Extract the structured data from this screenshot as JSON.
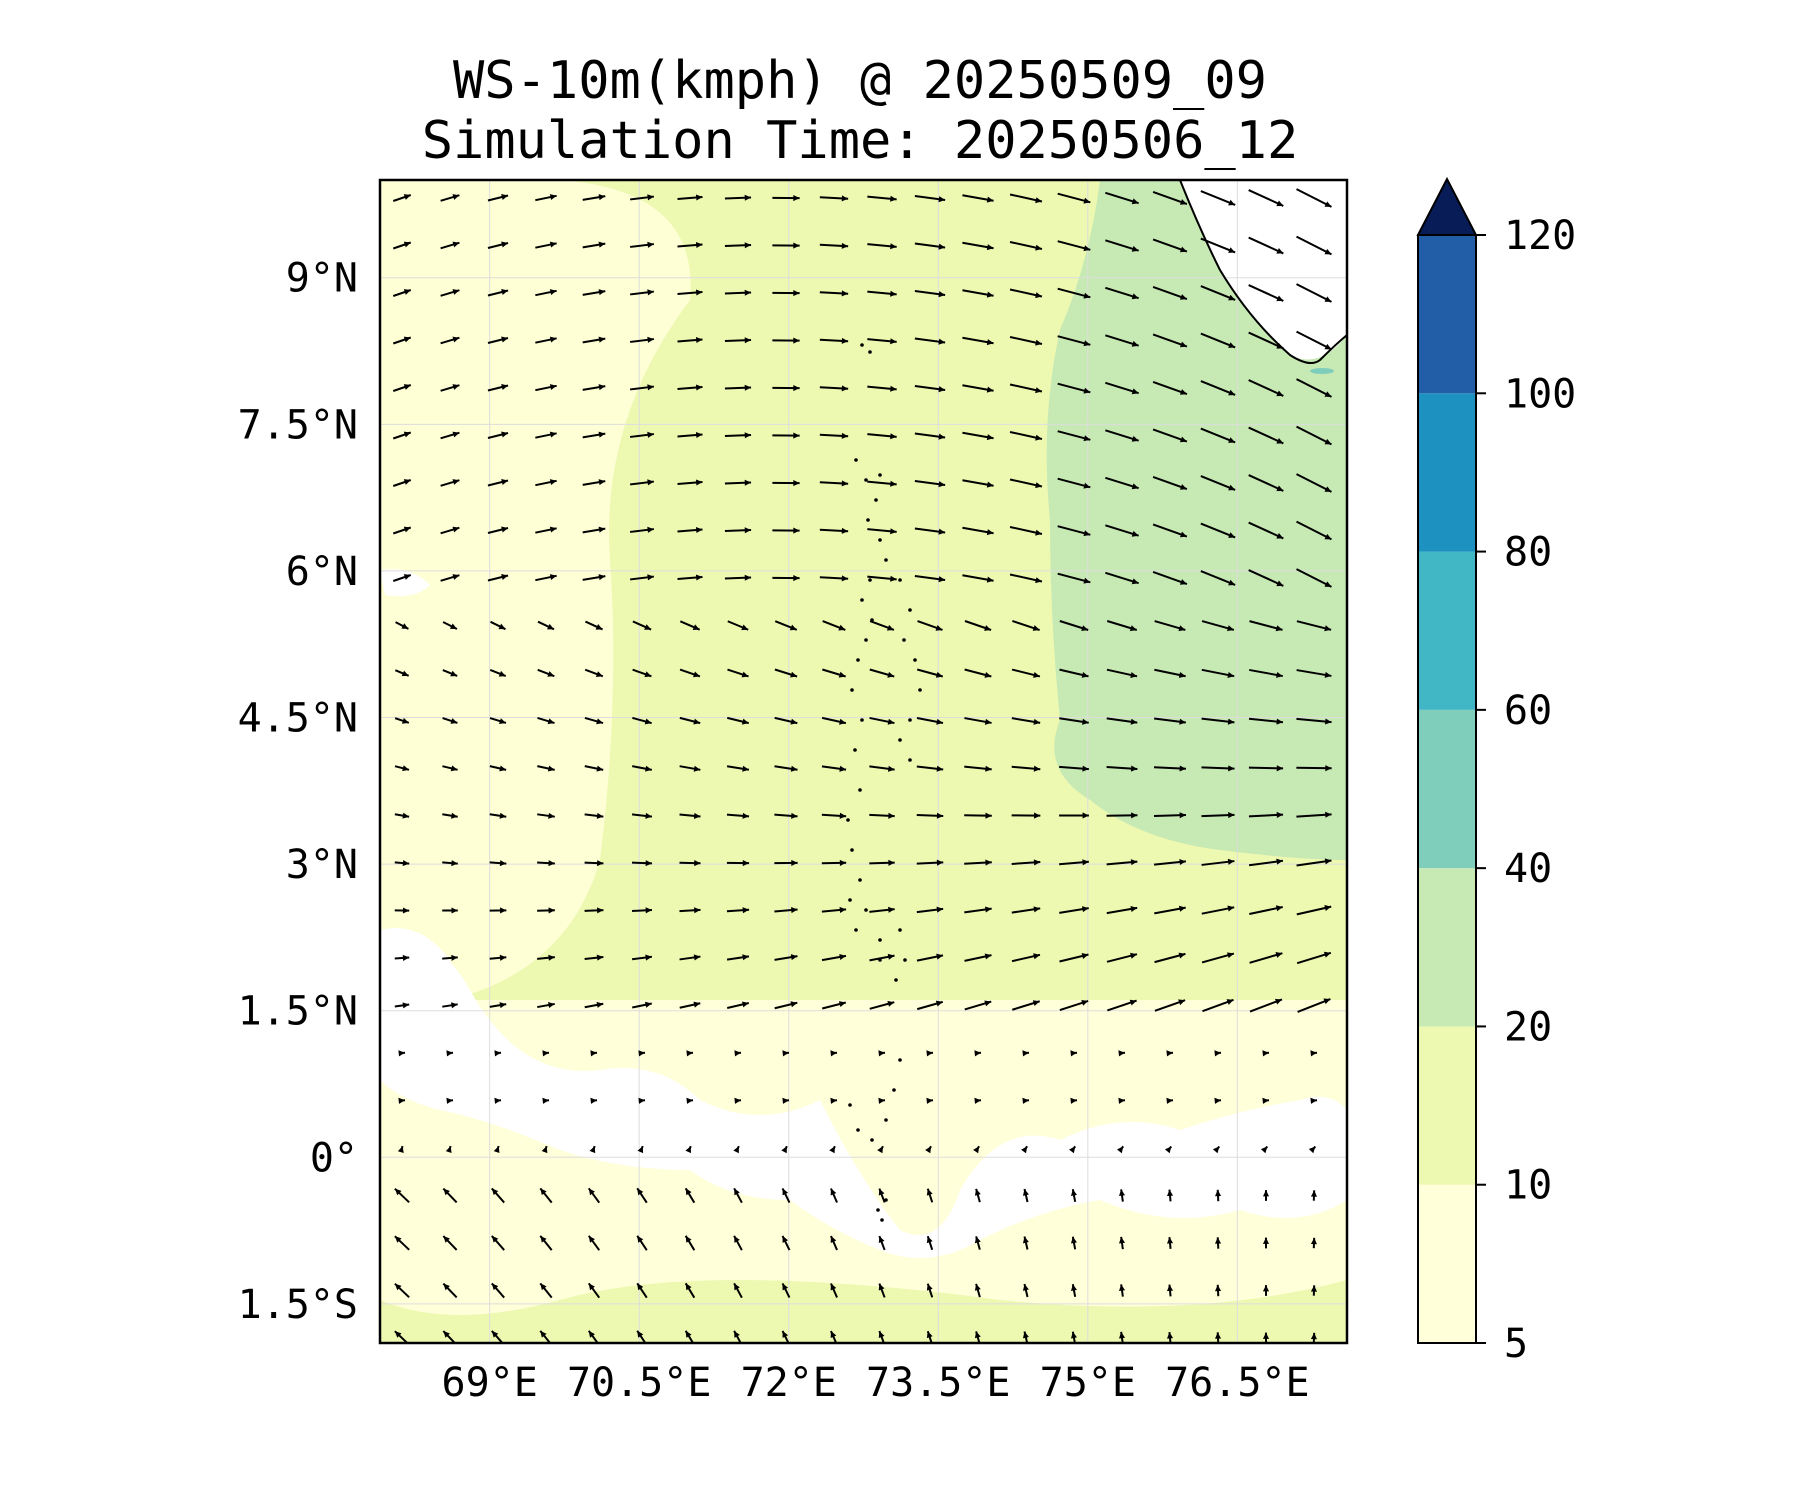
{
  "title": {
    "line1": "WS-10m(kmph) @ 20250509_09",
    "line2": "Simulation Time: 20250506_12"
  },
  "map": {
    "lon_range": [
      67.9,
      77.6
    ],
    "lat_range": [
      -1.9,
      10.0
    ],
    "lon_ticks": [
      {
        "value": 69,
        "label": "69°E"
      },
      {
        "value": 70.5,
        "label": "70.5°E"
      },
      {
        "value": 72,
        "label": "72°E"
      },
      {
        "value": 73.5,
        "label": "73.5°E"
      },
      {
        "value": 75,
        "label": "75°E"
      },
      {
        "value": 76.5,
        "label": "76.5°E"
      }
    ],
    "lat_ticks": [
      {
        "value": 9,
        "label": "9°N"
      },
      {
        "value": 7.5,
        "label": "7.5°N"
      },
      {
        "value": 6,
        "label": "6°N"
      },
      {
        "value": 4.5,
        "label": "4.5°N"
      },
      {
        "value": 3,
        "label": "3°N"
      },
      {
        "value": 1.5,
        "label": "1.5°N"
      },
      {
        "value": 0,
        "label": "0°"
      },
      {
        "value": -1.5,
        "label": "1.5°S"
      }
    ],
    "grid": true,
    "field": "wind speed 10 m with wind-direction arrows"
  },
  "colorbar": {
    "levels": [
      5,
      10,
      20,
      40,
      60,
      80,
      100,
      120
    ],
    "labels": [
      "5",
      "10",
      "20",
      "40",
      "60",
      "80",
      "100",
      "120"
    ],
    "colors": [
      "#ffffd9",
      "#edf8b1",
      "#c7e9b4",
      "#7fcdbb",
      "#41b6c4",
      "#1d91c0",
      "#225ea8",
      "#0c2c84"
    ],
    "extend_color": "#081d58",
    "extend": "max",
    "placement": "right"
  },
  "colors": {
    "calm": "#ffffff",
    "weak": "#ffffd9",
    "light": "#edf8b1",
    "moderate": "#c7e9b4",
    "frame": "#000000",
    "gridline": "#dddddd"
  }
}
